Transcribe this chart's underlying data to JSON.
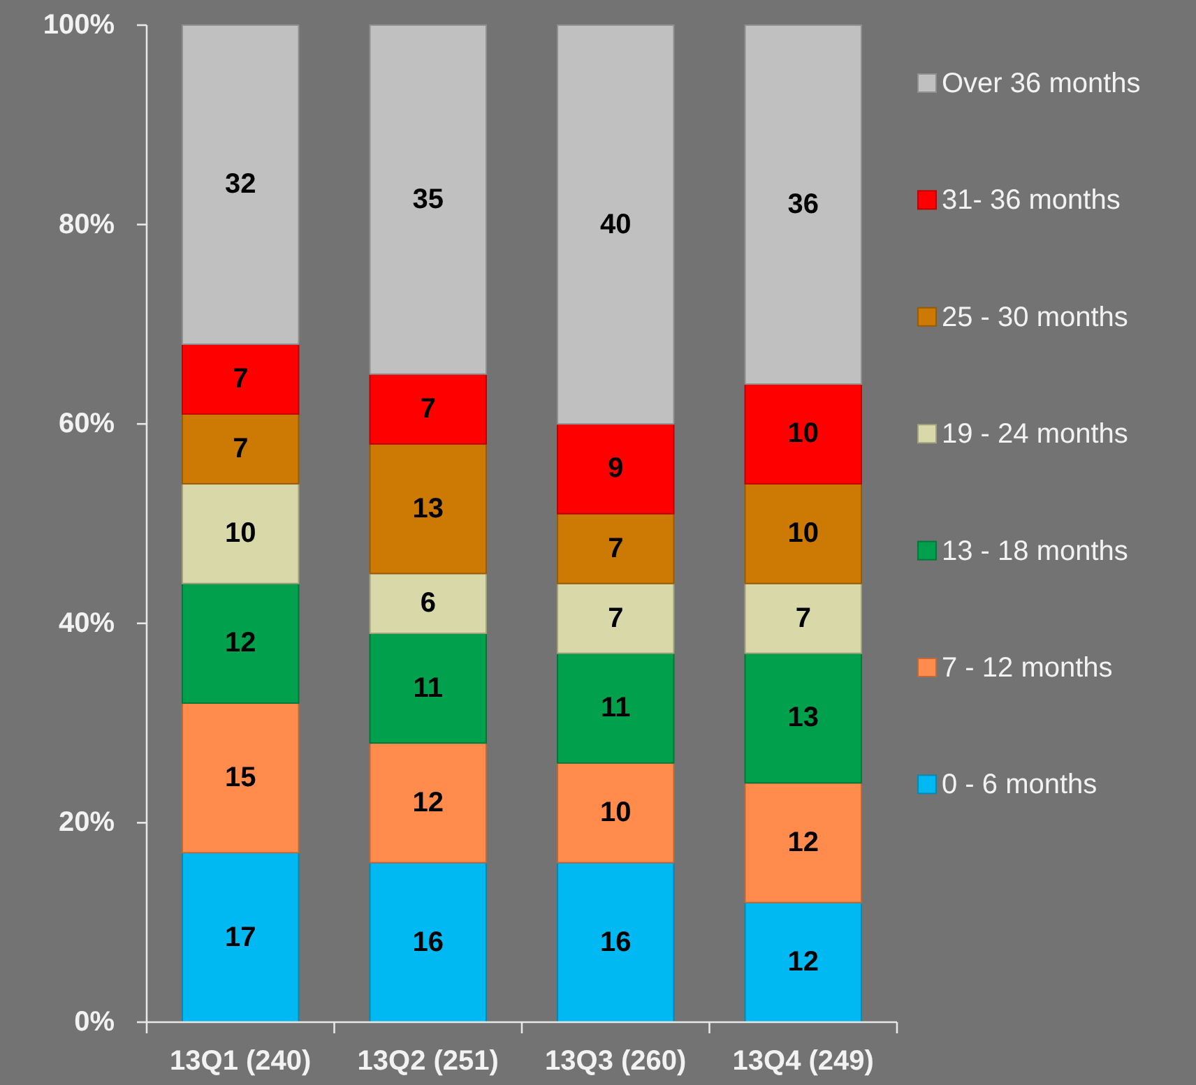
{
  "chart_data": {
    "type": "bar",
    "stacked": true,
    "legend": "right",
    "data_labels": true,
    "categories": [
      "13Q1 (240)",
      "13Q2 (251)",
      "13Q3 (260)",
      "13Q4 (249)"
    ],
    "ylim": [
      0,
      100
    ],
    "yticks": [
      {
        "value": 0,
        "label": "0%"
      },
      {
        "value": 20,
        "label": "20%"
      },
      {
        "value": 40,
        "label": "40%"
      },
      {
        "value": 60,
        "label": "60%"
      },
      {
        "value": 80,
        "label": "80%"
      },
      {
        "value": 100,
        "label": "100%"
      }
    ],
    "series": [
      {
        "name": "0 - 6 months",
        "color": "#00b8f2",
        "values": [
          17,
          16,
          16,
          12
        ]
      },
      {
        "name": "7 - 12 months",
        "color": "#ff8c4c",
        "values": [
          15,
          12,
          10,
          12
        ]
      },
      {
        "name": "13 - 18 months",
        "color": "#00a04c",
        "values": [
          12,
          11,
          11,
          13
        ]
      },
      {
        "name": "19 - 24 months",
        "color": "#d8d8a8",
        "values": [
          10,
          6,
          7,
          7
        ]
      },
      {
        "name": "25 - 30 months",
        "color": "#cc7a04",
        "values": [
          7,
          13,
          7,
          10
        ]
      },
      {
        "name": "31- 36 months",
        "color": "#ff0000",
        "values": [
          7,
          7,
          9,
          10
        ]
      },
      {
        "name": "Over 36 months",
        "color": "#c0c0c0",
        "values": [
          32,
          35,
          40,
          36
        ]
      }
    ]
  }
}
